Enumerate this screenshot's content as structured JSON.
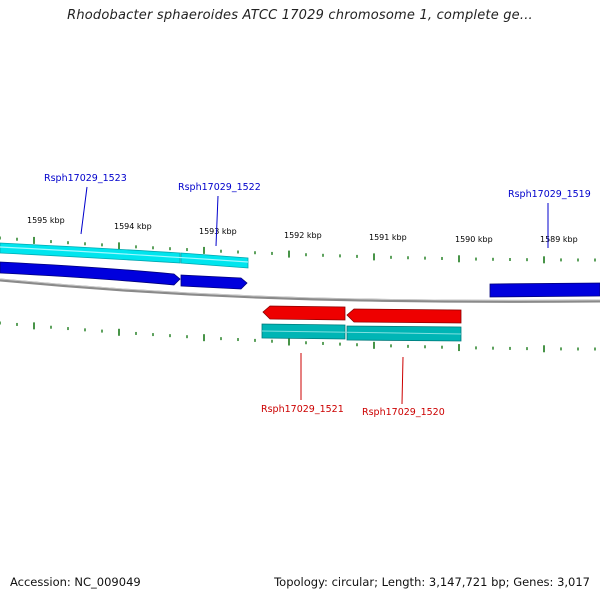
{
  "title": "Rhodobacter sphaeroides ATCC 17029 chromosome 1, complete ge...",
  "colors": {
    "forward_gene": "#0000dd",
    "forward_gene_light": "#2222ff",
    "reverse_gene": "#ee0000",
    "forward_cds_track": "#00e5ee",
    "reverse_cds_track": "#00b5b5",
    "backbone": "#8a8a8a",
    "tick": "#1a7a1a",
    "forward_label": "#0000cc",
    "reverse_label": "#cc0000"
  },
  "ticks": {
    "unit": "kbp",
    "labels": [
      "1595 kbp",
      "1594 kbp",
      "1593 kbp",
      "1592 kbp",
      "1591 kbp",
      "1590 kbp",
      "1589 kbp"
    ]
  },
  "genes": [
    {
      "locus": "Rsph17029_1523",
      "strand": "+"
    },
    {
      "locus": "Rsph17029_1522",
      "strand": "+"
    },
    {
      "locus": "Rsph17029_1521",
      "strand": "-"
    },
    {
      "locus": "Rsph17029_1520",
      "strand": "-"
    },
    {
      "locus": "Rsph17029_1519",
      "strand": "+"
    }
  ],
  "footer": {
    "accession": "Accession: NC_009049",
    "summary": "Topology: circular; Length: 3,147,721 bp; Genes: 3,017"
  }
}
